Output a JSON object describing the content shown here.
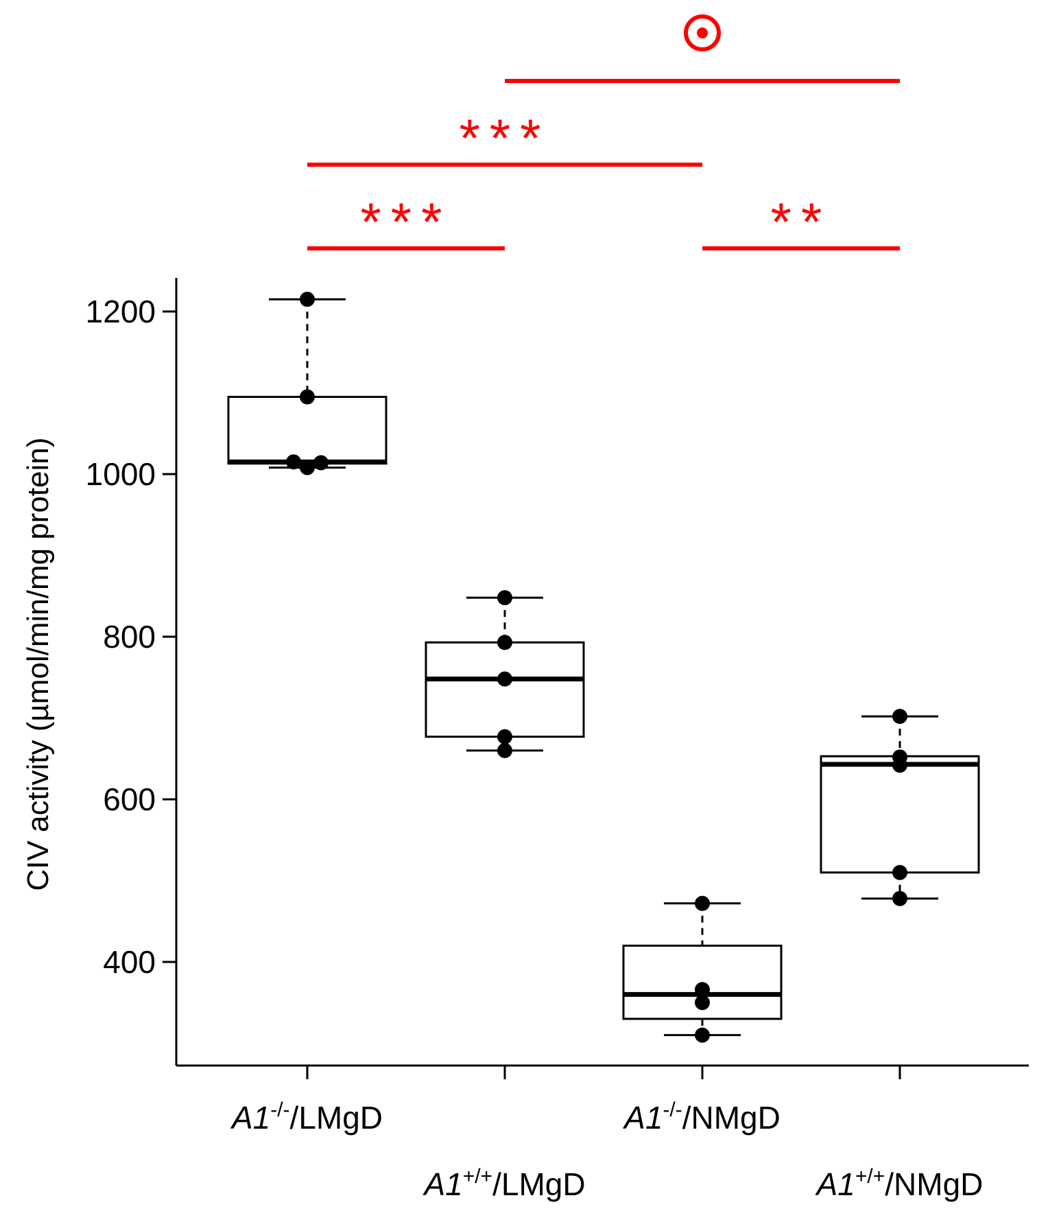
{
  "chart_data": {
    "type": "box",
    "ylabel": "CIV activity (µmol/min/mg protein)",
    "yticks": [
      400,
      600,
      800,
      1000,
      1200
    ],
    "ylim": [
      300,
      1240
    ],
    "groups": [
      {
        "label_main": "A1",
        "label_sup": "-/-",
        "label_rest": "/LMgD",
        "label_row": 1,
        "whisker_low": 1008,
        "q1": 1013,
        "median": 1015,
        "q3": 1095,
        "whisker_high": 1215,
        "points": [
          1215,
          1095,
          1015,
          1014,
          1008
        ]
      },
      {
        "label_main": "A1",
        "label_sup": "+/+",
        "label_rest": "/LMgD",
        "label_row": 2,
        "whisker_low": 660,
        "q1": 677,
        "median": 748,
        "q3": 793,
        "whisker_high": 848,
        "points": [
          848,
          793,
          748,
          677,
          660
        ]
      },
      {
        "label_main": "A1",
        "label_sup": "-/-",
        "label_rest": "/NMgD",
        "label_row": 1,
        "whisker_low": 310,
        "q1": 330,
        "median": 360,
        "q3": 420,
        "whisker_high": 472,
        "points": [
          472,
          366,
          350,
          310
        ]
      },
      {
        "label_main": "A1",
        "label_sup": "+/+",
        "label_rest": "/NMgD",
        "label_row": 2,
        "whisker_low": 478,
        "q1": 510,
        "median": 643,
        "q3": 653,
        "whisker_high": 702,
        "points": [
          702,
          652,
          642,
          510,
          478
        ]
      }
    ],
    "significance": [
      {
        "from": 0,
        "to": 1,
        "label": "***",
        "level": 0
      },
      {
        "from": 2,
        "to": 3,
        "label": "**",
        "level": 0
      },
      {
        "from": 0,
        "to": 2,
        "label": "***",
        "level": 1
      },
      {
        "from": 1,
        "to": 3,
        "label": "⊙",
        "level": 2
      }
    ],
    "colors": {
      "significance": "#ff0000",
      "data": "#000000"
    }
  }
}
